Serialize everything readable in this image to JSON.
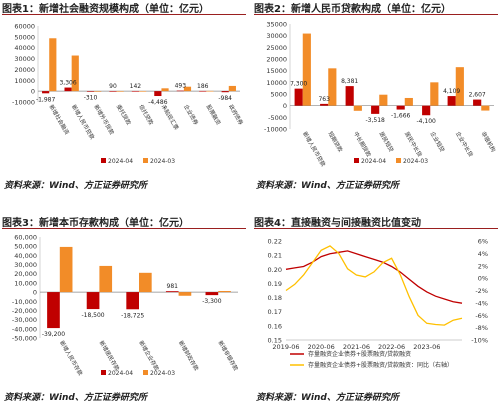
{
  "colors": {
    "apr": "#c00000",
    "mar": "#f28c28",
    "ratio": "#c00000",
    "yoy": "#ffc000",
    "accent": "#9a1f1f"
  },
  "source_text": "资料来源：Wind、方正证券研究所",
  "chart_data": [
    {
      "type": "bar",
      "title": "图表1：新增社会融资规模构成（单位：亿元）",
      "categories": [
        "新增社会融资",
        "新增人民币贷款",
        "新增外币贷款",
        "委托贷款",
        "信托贷款",
        "未贴现汇票",
        "企业债券",
        "股票融资",
        "政府债券"
      ],
      "series": [
        {
          "name": "2024-04",
          "values": [
            -1987,
            3306,
            -310,
            90,
            142,
            -4486,
            493,
            186,
            -984
          ]
        },
        {
          "name": "2024-03",
          "values": [
            48700,
            32800,
            -150,
            75,
            120,
            2600,
            4100,
            220,
            4800
          ]
        }
      ],
      "data_labels": [
        {
          "text": "-1,987",
          "category": "新增社会融资",
          "series": "2024-04",
          "value": -1987
        },
        {
          "text": "3,306",
          "category": "新增人民币贷款",
          "series": "2024-04",
          "value": 3306
        },
        {
          "text": "-310",
          "category": "新增外币贷款",
          "series": "2024-04",
          "value": -310
        },
        {
          "text": "90",
          "category": "委托贷款",
          "series": "2024-04",
          "value": 90
        },
        {
          "text": "142",
          "category": "信托贷款",
          "series": "2024-04",
          "value": 142
        },
        {
          "text": "-4,486",
          "category": "未贴现汇票",
          "series": "2024-04",
          "value": -4486
        },
        {
          "text": "493",
          "category": "企业债券",
          "series": "2024-04",
          "value": 493
        },
        {
          "text": "186",
          "category": "股票融资",
          "series": "2024-04",
          "value": 186
        },
        {
          "text": "-984",
          "category": "政府债券",
          "series": "2024-04",
          "value": -984
        }
      ],
      "ylim": [
        -10000,
        60000
      ],
      "yticks": [
        60000,
        50000,
        40000,
        30000,
        20000,
        10000,
        0,
        -10000
      ],
      "ytick_labels": [
        "60000",
        "50000",
        "40000",
        "30000",
        "20000",
        "10000",
        "0",
        "-10000"
      ],
      "legend": [
        "2024-04",
        "2024-03"
      ]
    },
    {
      "type": "bar",
      "title": "图表2：新增人民币贷款构成（单位：亿元）",
      "categories": [
        "新增人民币贷款",
        "短期贷款",
        "中长期贷款",
        "居民短贷",
        "居民中长贷",
        "企业短贷",
        "企业中长贷",
        "非银机构"
      ],
      "series": [
        {
          "name": "2024-04",
          "values": [
            7300,
            763,
            8381,
            -3518,
            -1666,
            -4100,
            4109,
            2607
          ]
        },
        {
          "name": "2024-03",
          "values": [
            30900,
            16000,
            -2200,
            4700,
            3300,
            10000,
            16500,
            -2100
          ]
        }
      ],
      "data_labels": [
        {
          "text": "7,300",
          "category": "新增人民币贷款",
          "series": "2024-04",
          "value": 7300
        },
        {
          "text": "763",
          "category": "短期贷款",
          "series": "2024-04",
          "value": 763
        },
        {
          "text": "8,381",
          "category": "中长期贷款",
          "series": "2024-04",
          "value": 8381
        },
        {
          "text": "-3,518",
          "category": "居民短贷",
          "series": "2024-04",
          "value": -3518
        },
        {
          "text": "-1,666",
          "category": "居民中长贷",
          "series": "2024-04",
          "value": -1666
        },
        {
          "text": "-4,100",
          "category": "企业短贷",
          "series": "2024-04",
          "value": -4100
        },
        {
          "text": "4,109",
          "category": "企业中长贷",
          "series": "2024-04",
          "value": 4109
        },
        {
          "text": "2,607",
          "category": "非银机构",
          "series": "2024-04",
          "value": 2607
        }
      ],
      "ylim": [
        -10000,
        35000
      ],
      "yticks": [
        35000,
        30000,
        25000,
        20000,
        15000,
        10000,
        5000,
        0,
        -5000,
        -10000
      ],
      "ytick_labels": [
        "35000",
        "30000",
        "25000",
        "20000",
        "15000",
        "10000",
        "5000",
        "0",
        "-5000",
        "-10000"
      ],
      "legend": [
        "2024-04",
        "2024-03"
      ]
    },
    {
      "type": "bar",
      "title": "图表3：新增本币存款构成（单位：亿元）",
      "categories": [
        "新增人民币存款",
        "新增居民存款",
        "新增企业存款",
        "新增财政存款",
        "新增非银存款"
      ],
      "series": [
        {
          "name": "2024-04",
          "values": [
            -39200,
            -18500,
            -18725,
            981,
            -3300
          ]
        },
        {
          "name": "2024-03",
          "values": [
            49200,
            28500,
            21000,
            -4000,
            1200
          ]
        }
      ],
      "data_labels": [
        {
          "text": "-39,200",
          "category": "新增人民币存款",
          "series": "2024-04",
          "value": -39200
        },
        {
          "text": "-18,500",
          "category": "新增居民存款",
          "series": "2024-04",
          "value": -18500
        },
        {
          "text": "-18,725",
          "category": "新增企业存款",
          "series": "2024-04",
          "value": -18725
        },
        {
          "text": "981",
          "category": "新增财政存款",
          "series": "2024-04",
          "value": 981
        },
        {
          "text": "-3,300",
          "category": "新增非银存款",
          "series": "2024-04",
          "value": -3300
        }
      ],
      "ylim": [
        -50000,
        60000
      ],
      "yticks": [
        60000,
        50000,
        40000,
        30000,
        20000,
        10000,
        0,
        -10000,
        -20000,
        -30000,
        -40000,
        -50000
      ],
      "ytick_labels": [
        "60,000",
        "50,000",
        "40,000",
        "30,000",
        "20,000",
        "10,000",
        "0",
        "-10,000",
        "-20,000",
        "-30,000",
        "-40,000",
        "-50,000"
      ],
      "legend": [
        "2024-04",
        "2024-03"
      ]
    },
    {
      "type": "line",
      "title": "图表4：直接融资与间接融资比值变动",
      "x": [
        "2019-06",
        "2019-09",
        "2019-12",
        "2020-03",
        "2020-06",
        "2020-09",
        "2020-12",
        "2021-03",
        "2021-06",
        "2021-09",
        "2021-12",
        "2022-03",
        "2022-06",
        "2022-09",
        "2022-12",
        "2023-03",
        "2023-06",
        "2023-09",
        "2023-12",
        "2024-03",
        "2024-04"
      ],
      "xtick_labels": [
        "2019-06",
        "2020-06",
        "2021-06",
        "2022-06",
        "2023-06"
      ],
      "series": [
        {
          "name": "存量融资企业债券+股票融资/贷款融资",
          "axis": "left",
          "values": [
            0.2,
            0.201,
            0.202,
            0.205,
            0.209,
            0.211,
            0.212,
            0.213,
            0.211,
            0.209,
            0.207,
            0.205,
            0.202,
            0.198,
            0.193,
            0.188,
            0.184,
            0.181,
            0.179,
            0.177,
            0.176
          ]
        },
        {
          "name": "存量融资企业债券+股票融资/贷款融资：同比（右轴）",
          "axis": "right",
          "values": [
            -2.0,
            -1.0,
            0.5,
            2.5,
            4.5,
            5.2,
            4.0,
            1.5,
            0.5,
            0.2,
            1.0,
            2.5,
            3.2,
            0.5,
            -3.0,
            -6.0,
            -7.3,
            -7.5,
            -7.6,
            -6.8,
            -6.5
          ]
        }
      ],
      "ylim": [
        0.15,
        0.22
      ],
      "yticks": [
        0.22,
        0.21,
        0.2,
        0.19,
        0.18,
        0.17,
        0.16,
        0.15
      ],
      "ytick_labels": [
        "0.22",
        "0.21",
        "0.20",
        "0.19",
        "0.18",
        "0.17",
        "0.16",
        "0.15"
      ],
      "y2lim": [
        -10,
        6
      ],
      "y2ticks": [
        6,
        4,
        2,
        0,
        -2,
        -4,
        -6,
        -8,
        -10
      ],
      "y2tick_labels": [
        "6%",
        "4%",
        "2%",
        "0%",
        "-2%",
        "-4%",
        "-6%",
        "-8%",
        "-10%"
      ],
      "legend_placement": "bottom"
    }
  ]
}
